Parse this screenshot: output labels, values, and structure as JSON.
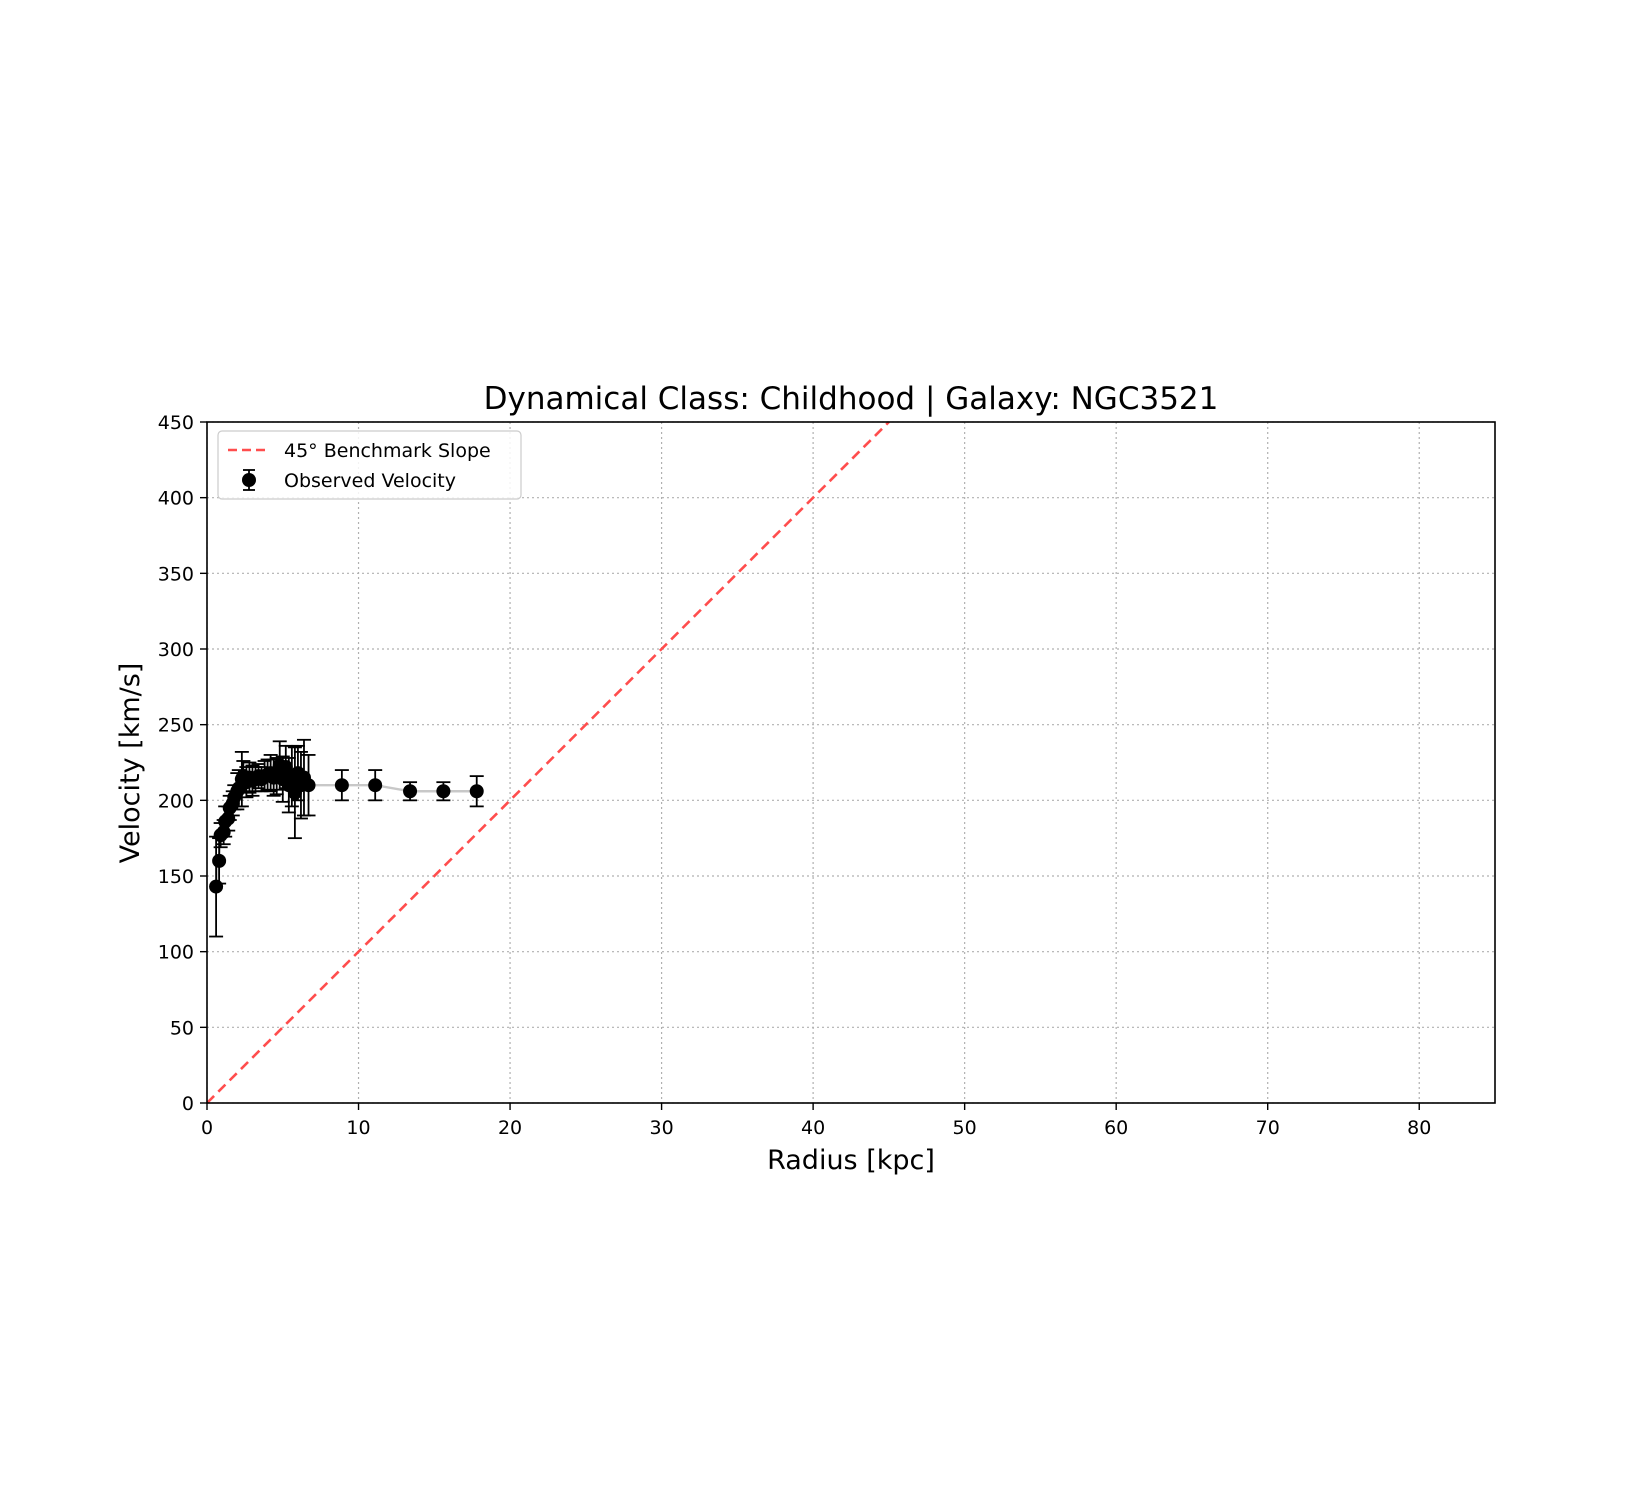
{
  "chart_data": {
    "type": "scatter",
    "title": "Dynamical Class: Childhood | Galaxy: NGC3521",
    "xlabel": "Radius [kpc]",
    "ylabel": "Velocity [km/s]",
    "xlim": [
      0,
      85
    ],
    "ylim": [
      0,
      450
    ],
    "xticks": [
      0,
      10,
      20,
      30,
      40,
      50,
      60,
      70,
      80
    ],
    "yticks": [
      0,
      50,
      100,
      150,
      200,
      250,
      300,
      350,
      400,
      450
    ],
    "grid": true,
    "legend_position": "top-left",
    "series": [
      {
        "name": "45° Benchmark Slope",
        "kind": "dashed-line",
        "color": "#ff4d4d",
        "x": [
          0,
          45
        ],
        "y": [
          0,
          450
        ]
      },
      {
        "name": "Observed Velocity",
        "kind": "errorbar",
        "color": "#000000",
        "connector_color": "#c8c8c8",
        "x": [
          0.6,
          0.8,
          0.9,
          1.1,
          1.2,
          1.4,
          1.5,
          1.7,
          1.8,
          2.0,
          2.1,
          2.3,
          2.4,
          2.6,
          2.8,
          3.0,
          3.2,
          3.4,
          3.6,
          3.8,
          4.0,
          4.2,
          4.4,
          4.6,
          4.8,
          5.0,
          5.2,
          5.4,
          5.6,
          5.8,
          6.0,
          6.2,
          6.4,
          6.7,
          8.9,
          11.1,
          13.4,
          15.6,
          17.8
        ],
        "y": [
          143,
          160,
          177,
          179,
          186,
          188,
          195,
          198,
          202,
          206,
          208,
          214,
          216,
          212,
          215,
          213,
          214,
          216,
          214,
          216,
          217,
          218,
          215,
          216,
          223,
          214,
          222,
          210,
          216,
          205,
          218,
          210,
          215,
          210,
          210,
          210,
          206,
          206,
          206
        ],
        "err": [
          33,
          15,
          8,
          8,
          10,
          8,
          8,
          8,
          8,
          12,
          12,
          18,
          10,
          10,
          10,
          10,
          8,
          8,
          8,
          10,
          10,
          12,
          12,
          12,
          16,
          15,
          14,
          18,
          20,
          30,
          18,
          22,
          25,
          20,
          10,
          10,
          6,
          6,
          10
        ]
      }
    ]
  }
}
